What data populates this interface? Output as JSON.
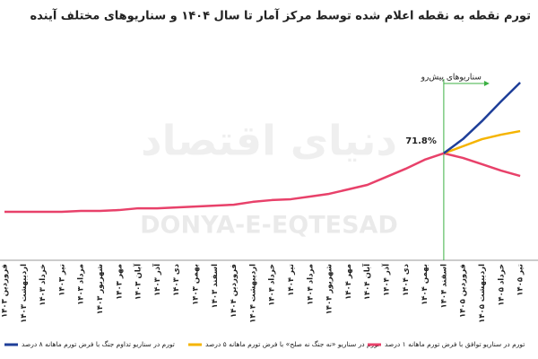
{
  "chart_data": {
    "type": "line",
    "title": "تورم نقطه به نقطه اعلام شده توسط مرکز آمار تا سال ۱۴۰۴ و سناریوهای مختلف آینده",
    "watermark": "DONYA-E-EQTESAD",
    "logo": "دنیای اقتصاد",
    "annotation": "سناریوهای پیش‌رو",
    "categories": [
      "فروردین ۱۴۰۳",
      "اردیبهشت ۱۴۰۳",
      "خرداد ۱۴۰۳",
      "تیر ۱۴۰۳",
      "مرداد ۱۴۰۳",
      "شهریور ۱۴۰۳",
      "مهر ۱۴۰۳",
      "آبان ۱۴۰۳",
      "آذر ۱۴۰۳",
      "دی ۱۴۰۳",
      "بهمن ۱۴۰۳",
      "اسفند ۱۴۰۳",
      "فروردین ۱۴۰۴",
      "اردیبهشت ۱۴۰۴",
      "خرداد ۱۴۰۴",
      "تیر ۱۴۰۴",
      "مرداد ۱۴۰۴",
      "شهریور ۱۴۰۴",
      "مهر ۱۴۰۴",
      "آبان ۱۴۰۴",
      "آذر ۱۴۰۴",
      "دی ۱۴۰۴",
      "بهمن ۱۴۰۴",
      "اسفند ۱۴۰۴",
      "فروردین ۱۴۰۵",
      "اردیبهشت ۱۴۰۵",
      "خرداد ۱۴۰۵",
      "تیر ۱۴۰۵"
    ],
    "ylim": [
      0,
      150
    ],
    "series": [
      {
        "name": "تورم در سناریو تداوم جنگ با فرض تورم ماهانه ۸ درصد",
        "color": "#1f3f99",
        "values": [
          null,
          null,
          null,
          null,
          null,
          null,
          null,
          null,
          null,
          null,
          null,
          null,
          null,
          null,
          null,
          null,
          null,
          null,
          null,
          null,
          null,
          null,
          null,
          71.8,
          81.3,
          93.4,
          106.6,
          119.3
        ]
      },
      {
        "name": "تورم در سناریو «نه جنگ نه صلح» با فرض تورم ماهانه ۵ درصد",
        "color": "#f5b400",
        "values": [
          null,
          null,
          null,
          null,
          null,
          null,
          null,
          null,
          null,
          null,
          null,
          null,
          null,
          null,
          null,
          null,
          null,
          null,
          null,
          null,
          null,
          null,
          null,
          71.8,
          76.5,
          81.3,
          84.3,
          86.7
        ]
      },
      {
        "name": "تورم در سناریو توافق با فرض تورم ماهانه ۱ درصد",
        "color": "#e8416a",
        "values": [
          32.5,
          32.5,
          32.5,
          32.5,
          33.1,
          33.1,
          33.7,
          34.9,
          34.9,
          35.5,
          36.1,
          36.7,
          37.3,
          39.2,
          40.4,
          41,
          42.8,
          44.6,
          47.6,
          50.6,
          56,
          61.4,
          67.5,
          71.8,
          68.7,
          64.5,
          60.2,
          56.6
        ],
        "value_labels": [
          null,
          null,
          null,
          null,
          null,
          null,
          null,
          null,
          null,
          null,
          null,
          null,
          null,
          null,
          null,
          null,
          null,
          null,
          null,
          null,
          null,
          null,
          null,
          "71.8%",
          null,
          null,
          null,
          null
        ]
      }
    ],
    "annotation_color": "#3cb043"
  }
}
